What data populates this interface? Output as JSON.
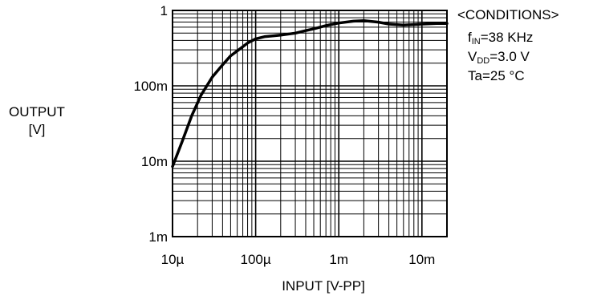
{
  "chart_data": {
    "type": "line",
    "title": "",
    "xlabel": "INPUT [V-PP]",
    "ylabel_line1": "OUTPUT",
    "ylabel_line2": "[V]",
    "xscale": "log",
    "yscale": "log",
    "xlim": [
      1e-05,
      0.02
    ],
    "ylim": [
      0.001,
      1
    ],
    "xticks": [
      {
        "value": 1e-05,
        "label": "10µ"
      },
      {
        "value": 0.0001,
        "label": "100µ"
      },
      {
        "value": 0.001,
        "label": "1m"
      },
      {
        "value": 0.01,
        "label": "10m"
      }
    ],
    "yticks": [
      {
        "value": 1,
        "label": "1"
      },
      {
        "value": 0.1,
        "label": "100m"
      },
      {
        "value": 0.01,
        "label": "10m"
      },
      {
        "value": 0.001,
        "label": "1m"
      }
    ],
    "grid": true,
    "series": [
      {
        "x": [
          1e-05,
          1.3e-05,
          1.7e-05,
          2.2e-05,
          3e-05,
          4e-05,
          5e-05,
          6.5e-05,
          8e-05,
          0.0001,
          0.00013,
          0.00016,
          0.0002,
          0.0003,
          0.0004,
          0.0005,
          0.0007,
          0.001,
          0.0015,
          0.002,
          0.003,
          0.004,
          0.006,
          0.008,
          0.01,
          0.015,
          0.02
        ],
        "y": [
          0.0085,
          0.018,
          0.04,
          0.075,
          0.13,
          0.19,
          0.25,
          0.31,
          0.37,
          0.42,
          0.45,
          0.46,
          0.47,
          0.5,
          0.54,
          0.57,
          0.63,
          0.68,
          0.72,
          0.73,
          0.7,
          0.66,
          0.64,
          0.65,
          0.66,
          0.67,
          0.67
        ]
      }
    ],
    "conditions": {
      "title": "<CONDITIONS>",
      "fin_main": "f",
      "fin_sub": "IN",
      "fin_value": "=38 KHz",
      "vdd_main": "V",
      "vdd_sub": "DD",
      "vdd_value": "=3.0 V",
      "ta": "Ta=25 °C"
    }
  }
}
